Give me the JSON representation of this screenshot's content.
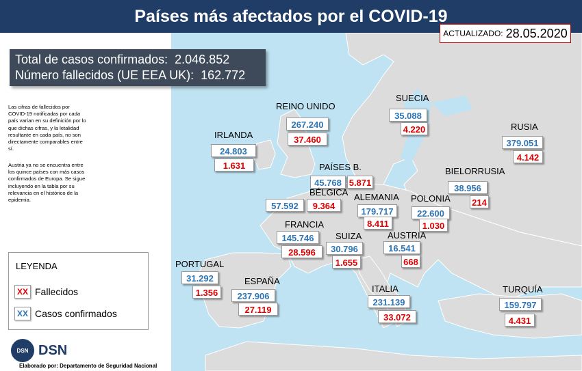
{
  "header": {
    "title": "Países más afectados por el COVID-19"
  },
  "updated": {
    "label": "ACTUALIZADO:",
    "date": "28.05.2020"
  },
  "totals": {
    "cases_label": "Total de casos confirmados:",
    "cases_value": "2.046.852",
    "deaths_label": "Número fallecidos (UE EEA UK):",
    "deaths_value": "162.772"
  },
  "notes": {
    "note1": "Las cifras de fallecidos por COVID-19 notificadas por cada país varían en su definición por lo que dichas cifras, y la letalidad resultante en cada país, no son directamente comparables entre sí.",
    "note2": "Austria ya no se encuentra entre los quince países con más casos confirmados de Europa. Se sigue incluyendo en la tabla por su relevancia en el histórico de la epidemia."
  },
  "countries": {
    "reino_unido": {
      "name": "REINO UNIDO",
      "confirmed": "267.240",
      "deaths": "37.460"
    },
    "suecia": {
      "name": "SUECIA",
      "confirmed": "35.088",
      "deaths": "4.220"
    },
    "rusia": {
      "name": "RUSIA",
      "confirmed": "379.051",
      "deaths": "4.142"
    },
    "irlanda": {
      "name": "IRLANDA",
      "confirmed": "24.803",
      "deaths": "1.631"
    },
    "paises_bajos": {
      "name": "PAÍSES B.",
      "confirmed": "45.768",
      "deaths": "5.871"
    },
    "bielorrusia": {
      "name": "BIELORRUSIA",
      "confirmed": "38.956",
      "deaths": "214"
    },
    "belgica": {
      "name": "BÉLGICA",
      "confirmed": "57.592",
      "deaths": "9.364"
    },
    "alemania": {
      "name": "ALEMANIA",
      "confirmed": "179.717",
      "deaths": "8.411"
    },
    "polonia": {
      "name": "POLONIA",
      "confirmed": "22.600",
      "deaths": "1.030"
    },
    "francia": {
      "name": "FRANCIA",
      "confirmed": "145.746",
      "deaths": "28.596"
    },
    "suiza": {
      "name": "SUIZA",
      "confirmed": "30.796",
      "deaths": "1.655"
    },
    "austria": {
      "name": "AUSTRIA",
      "confirmed": "16.541",
      "deaths": "668"
    },
    "portugal": {
      "name": "PORTUGAL",
      "confirmed": "31.292",
      "deaths": "1.356"
    },
    "espana": {
      "name": "ESPAÑA",
      "confirmed": "237.906",
      "deaths": "27.119"
    },
    "italia": {
      "name": "ITALIA",
      "confirmed": "231.139",
      "deaths": "33.072"
    },
    "turquia": {
      "name": "TURQUÍA",
      "confirmed": "159.797",
      "deaths": "4.431"
    }
  },
  "legend": {
    "title": "LEYENDA",
    "deaths_swatch": "XX",
    "deaths_label": "Fallecidos",
    "confirmed_swatch": "XX",
    "confirmed_label": "Casos confirmados"
  },
  "logo": {
    "text": "DSN",
    "seal_text": "DSN"
  },
  "credit": "Elaborado por: Departamento de Seguridad Nacional",
  "colors": {
    "sea": "#bfe3f2",
    "land": "#dcdcdc",
    "title_bar": "#1f3d66",
    "confirmed": "#2e75b6",
    "deaths": "#e00000"
  }
}
